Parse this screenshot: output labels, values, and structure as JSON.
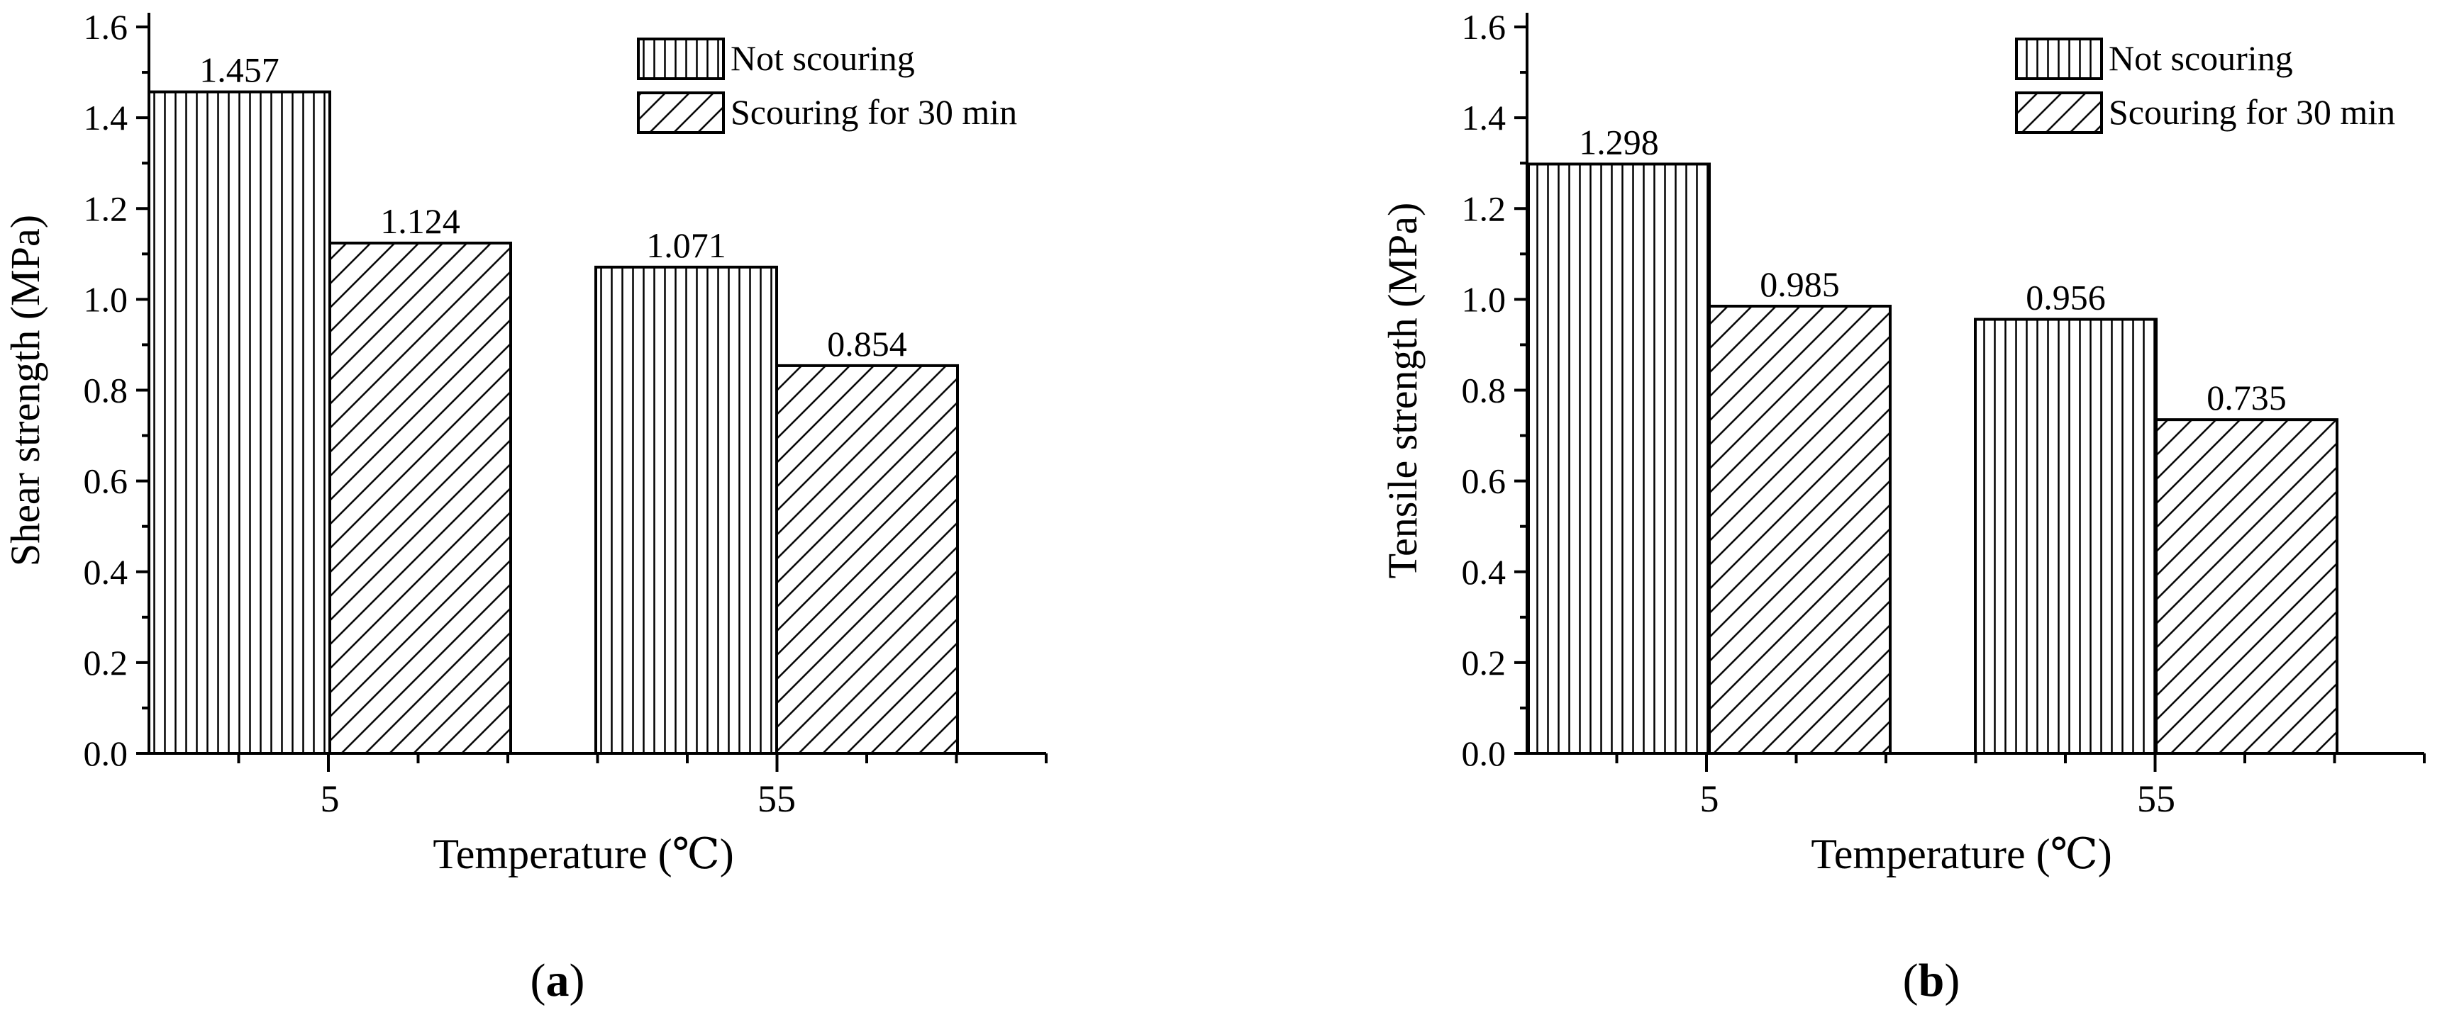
{
  "chart_data": [
    {
      "panel_label": "a",
      "type": "bar",
      "categories": [
        "5",
        "55"
      ],
      "series": [
        {
          "name": "Not scouring",
          "values": [
            1.457,
            1.071
          ],
          "pattern": "vertical-lines"
        },
        {
          "name": "Scouring for 30 min",
          "values": [
            1.124,
            0.854
          ],
          "pattern": "diagonal-lines"
        }
      ],
      "value_labels": [
        [
          "1.457",
          "1.071"
        ],
        [
          "1.124",
          "0.854"
        ]
      ],
      "xlabel": "Temperature (℃)",
      "ylabel": "Shear strength (MPa)",
      "ylim": [
        0,
        1.6
      ],
      "yticks": [
        0,
        0.2,
        0.4,
        0.6,
        0.8,
        1.0,
        1.2,
        1.4,
        1.6
      ],
      "ytick_labels": [
        "0.0",
        "0.2",
        "0.4",
        "0.6",
        "0.8",
        "1.0",
        "1.2",
        "1.4",
        "1.6"
      ],
      "legend_position": "top-right",
      "grid": false
    },
    {
      "panel_label": "b",
      "type": "bar",
      "categories": [
        "5",
        "55"
      ],
      "series": [
        {
          "name": "Not scouring",
          "values": [
            1.298,
            0.956
          ],
          "pattern": "vertical-lines"
        },
        {
          "name": "Scouring for 30 min",
          "values": [
            0.985,
            0.735
          ],
          "pattern": "diagonal-lines"
        }
      ],
      "value_labels": [
        [
          "1.298",
          "0.956"
        ],
        [
          "0.985",
          "0.735"
        ]
      ],
      "xlabel": "Temperature (℃)",
      "ylabel": "Tensile strength (MPa)",
      "ylim": [
        0,
        1.6
      ],
      "yticks": [
        0,
        0.2,
        0.4,
        0.6,
        0.8,
        1.0,
        1.2,
        1.4,
        1.6
      ],
      "ytick_labels": [
        "0.0",
        "0.2",
        "0.4",
        "0.6",
        "0.8",
        "1.0",
        "1.2",
        "1.4",
        "1.6"
      ],
      "legend_position": "top-right",
      "grid": false
    }
  ],
  "colors": {
    "ink": "#000000",
    "background": "#ffffff"
  }
}
